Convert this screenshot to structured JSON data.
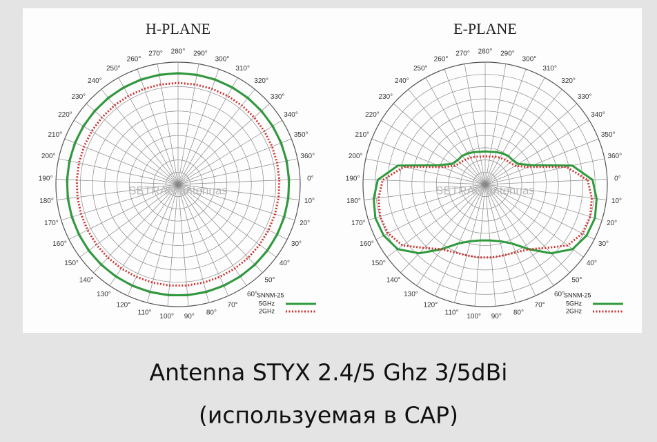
{
  "chart_data": [
    {
      "type": "polar",
      "title": "H-PLANE",
      "watermark": "SETRAN antennas",
      "legend_title": "SNNM-25",
      "legend": "lower right",
      "grid": true,
      "theta_top": 280,
      "thetalim": [
        -10,
        360
      ],
      "rlim": [
        0,
        10
      ],
      "rticks": [
        1,
        2,
        3,
        4,
        5,
        6,
        7,
        8,
        9,
        10
      ],
      "thetaticks": [
        {
          "value": 0,
          "label": "0°"
        },
        {
          "value": 10,
          "label": "10°"
        },
        {
          "value": 20,
          "label": "20°"
        },
        {
          "value": 30,
          "label": "30°"
        },
        {
          "value": 40,
          "label": "40°"
        },
        {
          "value": 50,
          "label": "50°"
        },
        {
          "value": 60,
          "label": "60°"
        },
        {
          "value": 70,
          "label": "70°"
        },
        {
          "value": 80,
          "label": "80°"
        },
        {
          "value": 90,
          "label": "90°"
        },
        {
          "value": 100,
          "label": "100°"
        },
        {
          "value": 110,
          "label": "110°"
        },
        {
          "value": 120,
          "label": "120°"
        },
        {
          "value": 130,
          "label": "130°"
        },
        {
          "value": 140,
          "label": "140°"
        },
        {
          "value": 150,
          "label": "150°"
        },
        {
          "value": 160,
          "label": "160°"
        },
        {
          "value": 170,
          "label": "170°"
        },
        {
          "value": 180,
          "label": "180°"
        },
        {
          "value": 190,
          "label": "190°"
        },
        {
          "value": 200,
          "label": "200°"
        },
        {
          "value": 210,
          "label": "210°"
        },
        {
          "value": 220,
          "label": "220°"
        },
        {
          "value": 230,
          "label": "230°"
        },
        {
          "value": 240,
          "label": "240°"
        },
        {
          "value": 250,
          "label": "250°"
        },
        {
          "value": 260,
          "label": "260°"
        },
        {
          "value": 270,
          "label": "270°"
        },
        {
          "value": 280,
          "label": "280°"
        },
        {
          "value": 290,
          "label": "290°"
        },
        {
          "value": 300,
          "label": "300°"
        },
        {
          "value": 310,
          "label": "310°"
        },
        {
          "value": 320,
          "label": "320°"
        },
        {
          "value": 330,
          "label": "330°"
        },
        {
          "value": 340,
          "label": "340°"
        },
        {
          "value": 350,
          "label": "350°"
        },
        {
          "value": 360,
          "label": "360°"
        }
      ],
      "theta": [
        0,
        10,
        20,
        30,
        40,
        50,
        60,
        70,
        80,
        90,
        100,
        110,
        120,
        130,
        140,
        150,
        160,
        170,
        180,
        190,
        200,
        210,
        220,
        230,
        240,
        250,
        260,
        270,
        280,
        290,
        300,
        310,
        320,
        330,
        340,
        350,
        360
      ],
      "series": [
        {
          "name": "5GHz",
          "color": "#2e9a3c",
          "style": "solid",
          "values": [
            9.1,
            9.1,
            9.1,
            9.1,
            9.1,
            9.1,
            9.1,
            9.1,
            9.1,
            9.1,
            9.1,
            9.1,
            9.1,
            9.1,
            9.1,
            9.1,
            9.1,
            9.1,
            9.1,
            9.1,
            9.1,
            9.1,
            9.1,
            9.1,
            9.1,
            9.1,
            9.1,
            9.1,
            9.1,
            9.1,
            9.1,
            9.1,
            9.1,
            9.1,
            9.1,
            9.1,
            9.1
          ]
        },
        {
          "name": "2GHz",
          "color": "#d0312d",
          "style": "dotted",
          "values": [
            8.3,
            8.3,
            8.3,
            8.3,
            8.3,
            8.3,
            8.3,
            8.3,
            8.3,
            8.3,
            8.3,
            8.3,
            8.3,
            8.3,
            8.3,
            8.3,
            8.3,
            8.3,
            8.3,
            8.3,
            8.3,
            8.3,
            8.3,
            8.3,
            8.3,
            8.3,
            8.3,
            8.3,
            8.3,
            8.3,
            8.3,
            8.3,
            8.3,
            8.3,
            8.3,
            8.3,
            8.3
          ]
        }
      ]
    },
    {
      "type": "polar",
      "title": "E-PLANE",
      "watermark": "SETRAN antennas",
      "legend_title": "SNNM-25",
      "legend": "lower right",
      "grid": true,
      "theta_top": 280,
      "thetalim": [
        -10,
        360
      ],
      "rlim": [
        0,
        10
      ],
      "rticks": [
        1,
        2,
        3,
        4,
        5,
        6,
        7,
        8,
        9,
        10
      ],
      "thetaticks": [
        {
          "value": 0,
          "label": "0°"
        },
        {
          "value": 10,
          "label": "10°"
        },
        {
          "value": 20,
          "label": "20°"
        },
        {
          "value": 30,
          "label": "30°"
        },
        {
          "value": 40,
          "label": "40°"
        },
        {
          "value": 50,
          "label": "50°"
        },
        {
          "value": 60,
          "label": "60°"
        },
        {
          "value": 70,
          "label": "70°"
        },
        {
          "value": 80,
          "label": "80°"
        },
        {
          "value": 90,
          "label": "90°"
        },
        {
          "value": 100,
          "label": "100°"
        },
        {
          "value": 110,
          "label": "110°"
        },
        {
          "value": 120,
          "label": "120°"
        },
        {
          "value": 130,
          "label": "130°"
        },
        {
          "value": 140,
          "label": "140°"
        },
        {
          "value": 150,
          "label": "150°"
        },
        {
          "value": 160,
          "label": "160°"
        },
        {
          "value": 170,
          "label": "170°"
        },
        {
          "value": 180,
          "label": "180°"
        },
        {
          "value": 190,
          "label": "190°"
        },
        {
          "value": 200,
          "label": "200°"
        },
        {
          "value": 210,
          "label": "210°"
        },
        {
          "value": 220,
          "label": "220°"
        },
        {
          "value": 230,
          "label": "230°"
        },
        {
          "value": 240,
          "label": "240°"
        },
        {
          "value": 250,
          "label": "250°"
        },
        {
          "value": 260,
          "label": "260°"
        },
        {
          "value": 270,
          "label": "270°"
        },
        {
          "value": 280,
          "label": "280°"
        },
        {
          "value": 290,
          "label": "290°"
        },
        {
          "value": 300,
          "label": "300°"
        },
        {
          "value": 310,
          "label": "310°"
        },
        {
          "value": 320,
          "label": "320°"
        },
        {
          "value": 330,
          "label": "330°"
        },
        {
          "value": 340,
          "label": "340°"
        },
        {
          "value": 350,
          "label": "350°"
        },
        {
          "value": 360,
          "label": "360°"
        }
      ],
      "theta": [
        0,
        10,
        20,
        30,
        40,
        50,
        60,
        70,
        80,
        90,
        100,
        110,
        120,
        130,
        140,
        150,
        160,
        170,
        180,
        190,
        200,
        210,
        220,
        230,
        240,
        250,
        260,
        270,
        280,
        290,
        300,
        310,
        320,
        330,
        340,
        350,
        360
      ],
      "series": [
        {
          "name": "5GHz",
          "color": "#2e9a3c",
          "style": "solid",
          "values": [
            8.8,
            9.2,
            9.4,
            9.3,
            8.9,
            7.8,
            6.4,
            5.3,
            4.8,
            4.6,
            4.6,
            4.8,
            5.3,
            6.4,
            7.8,
            8.9,
            9.3,
            9.4,
            9.2,
            8.8,
            7.3,
            4.2,
            3.2,
            3.0,
            3.0,
            2.9,
            2.8,
            2.7,
            2.7,
            2.7,
            2.8,
            2.9,
            3.0,
            3.0,
            3.2,
            4.2,
            7.3
          ]
        },
        {
          "name": "2GHz",
          "color": "#d0312d",
          "style": "dotted",
          "values": [
            8.4,
            8.8,
            9.0,
            8.9,
            8.4,
            7.2,
            6.4,
            6.1,
            6.0,
            6.0,
            6.0,
            6.0,
            6.1,
            6.4,
            7.2,
            8.4,
            8.9,
            9.0,
            8.8,
            8.4,
            6.8,
            3.8,
            2.9,
            2.7,
            2.6,
            2.5,
            2.4,
            2.3,
            2.3,
            2.3,
            2.4,
            2.5,
            2.6,
            2.7,
            2.9,
            3.8,
            6.8
          ]
        }
      ]
    }
  ],
  "caption": [
    "Antenna STYX 2.4/5 Ghz 3/5dBi",
    "(используемая в CAP)"
  ]
}
